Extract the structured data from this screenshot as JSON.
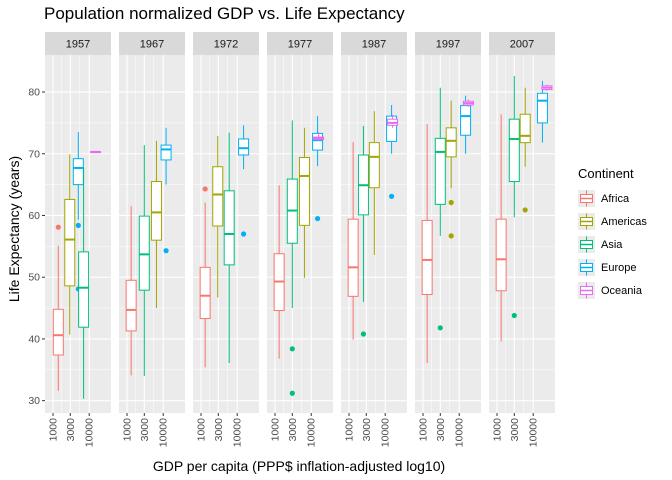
{
  "chart_data": {
    "type": "boxplot",
    "title": "Population normalized GDP vs. Life Expectancy",
    "xlabel": "GDP per capita (PPP$ inflation-adjusted log10)",
    "ylabel": "Life Expectancy (years)",
    "x_scale": "log10",
    "x_ticks": [
      "1000",
      "3000",
      "10000"
    ],
    "y_ticks": [
      "30",
      "40",
      "50",
      "60",
      "70",
      "80"
    ],
    "ylim": [
      28,
      86
    ],
    "grid": true,
    "legend_position": "right",
    "legend_title": "Continent",
    "facet_years": [
      "1957",
      "1967",
      "1972",
      "1977",
      "1987",
      "1997",
      "2007"
    ],
    "continents": [
      {
        "name": "Africa",
        "color": "#F8766D"
      },
      {
        "name": "Americas",
        "color": "#A3A500"
      },
      {
        "name": "Asia",
        "color": "#00BF7D"
      },
      {
        "name": "Europe",
        "color": "#00B0F6"
      },
      {
        "name": "Oceania",
        "color": "#E76BF3"
      }
    ],
    "boxes": [
      {
        "year": "1957",
        "continent": "Africa",
        "x": 1400,
        "wmin": 31.6,
        "q1": 37.4,
        "median": 40.6,
        "q3": 44.8,
        "wmax": 55.1,
        "outliers": [
          58.1
        ]
      },
      {
        "year": "1957",
        "continent": "Americas",
        "x": 2900,
        "wmin": 40.7,
        "q1": 48.6,
        "median": 56.1,
        "q3": 62.6,
        "wmax": 69.9,
        "outliers": []
      },
      {
        "year": "1957",
        "continent": "Europe",
        "x": 5000,
        "wmin": 59.3,
        "q1": 65.0,
        "median": 67.7,
        "q3": 69.2,
        "wmax": 73.5,
        "outliers": [
          58.4,
          48.1
        ]
      },
      {
        "year": "1957",
        "continent": "Asia",
        "x": 7000,
        "wmin": 30.3,
        "q1": 41.9,
        "median": 48.3,
        "q3": 54.1,
        "wmax": 67.8,
        "outliers": []
      },
      {
        "year": "1957",
        "continent": "Oceania",
        "x": 15000,
        "wmin": 70.26,
        "q1": 70.28,
        "median": 70.3,
        "q3": 70.32,
        "wmax": 70.33,
        "outliers": []
      },
      {
        "year": "1967",
        "continent": "Africa",
        "x": 1300,
        "wmin": 34.1,
        "q1": 41.3,
        "median": 44.7,
        "q3": 49.5,
        "wmax": 61.5,
        "outliers": []
      },
      {
        "year": "1967",
        "continent": "Asia",
        "x": 3000,
        "wmin": 34.0,
        "q1": 47.9,
        "median": 53.7,
        "q3": 59.9,
        "wmax": 71.4,
        "outliers": []
      },
      {
        "year": "1967",
        "continent": "Americas",
        "x": 6500,
        "wmin": 45.0,
        "q1": 56.0,
        "median": 60.5,
        "q3": 65.5,
        "wmax": 72.1,
        "outliers": []
      },
      {
        "year": "1967",
        "continent": "Europe",
        "x": 12000,
        "wmin": 65.0,
        "q1": 69.0,
        "median": 70.7,
        "q3": 71.4,
        "wmax": 74.2,
        "outliers": [
          54.3
        ]
      },
      {
        "year": "1972",
        "continent": "Africa",
        "x": 1300,
        "wmin": 35.4,
        "q1": 43.3,
        "median": 47.0,
        "q3": 51.6,
        "wmax": 62.1,
        "outliers": [
          64.3
        ]
      },
      {
        "year": "1972",
        "continent": "Americas",
        "x": 2900,
        "wmin": 46.7,
        "q1": 58.3,
        "median": 63.4,
        "q3": 67.9,
        "wmax": 72.9,
        "outliers": []
      },
      {
        "year": "1972",
        "continent": "Asia",
        "x": 6000,
        "wmin": 36.1,
        "q1": 52.0,
        "median": 57.0,
        "q3": 64.0,
        "wmax": 73.4,
        "outliers": []
      },
      {
        "year": "1972",
        "continent": "Europe",
        "x": 15000,
        "wmin": 67.5,
        "q1": 69.8,
        "median": 70.9,
        "q3": 72.4,
        "wmax": 74.6,
        "outliers": [
          57.0
        ]
      },
      {
        "year": "1977",
        "continent": "Africa",
        "x": 1300,
        "wmin": 36.8,
        "q1": 44.6,
        "median": 49.3,
        "q3": 53.8,
        "wmax": 64.9,
        "outliers": []
      },
      {
        "year": "1977",
        "continent": "Asia",
        "x": 3000,
        "wmin": 45.0,
        "q1": 55.5,
        "median": 60.8,
        "q3": 65.9,
        "wmax": 75.4,
        "outliers": [
          38.4,
          31.2
        ]
      },
      {
        "year": "1977",
        "continent": "Americas",
        "x": 6500,
        "wmin": 49.9,
        "q1": 58.4,
        "median": 66.4,
        "q3": 69.4,
        "wmax": 74.2,
        "outliers": []
      },
      {
        "year": "1977",
        "continent": "Europe",
        "x": 15000,
        "wmin": 68.0,
        "q1": 70.6,
        "median": 72.2,
        "q3": 73.3,
        "wmax": 76.1,
        "outliers": [
          59.5
        ]
      },
      {
        "year": "1977",
        "continent": "Oceania",
        "x": 16000,
        "wmin": 72.1,
        "q1": 72.3,
        "median": 72.5,
        "q3": 72.7,
        "wmax": 73.5,
        "outliers": []
      },
      {
        "year": "1987",
        "continent": "Africa",
        "x": 1300,
        "wmin": 39.9,
        "q1": 46.9,
        "median": 51.6,
        "q3": 59.4,
        "wmax": 71.9,
        "outliers": []
      },
      {
        "year": "1987",
        "continent": "Asia",
        "x": 2500,
        "wmin": 46.0,
        "q1": 60.1,
        "median": 64.9,
        "q3": 69.8,
        "wmax": 74.5,
        "outliers": [
          40.8
        ]
      },
      {
        "year": "1987",
        "continent": "Americas",
        "x": 5000,
        "wmin": 53.6,
        "q1": 64.5,
        "median": 69.5,
        "q3": 71.8,
        "wmax": 76.9,
        "outliers": []
      },
      {
        "year": "1987",
        "continent": "Europe",
        "x": 15000,
        "wmin": 70.0,
        "q1": 72.0,
        "median": 74.8,
        "q3": 76.1,
        "wmax": 77.9,
        "outliers": [
          63.1
        ]
      },
      {
        "year": "1987",
        "continent": "Oceania",
        "x": 16000,
        "wmin": 74.2,
        "q1": 74.6,
        "median": 75.0,
        "q3": 75.6,
        "wmax": 76.3,
        "outliers": []
      },
      {
        "year": "1997",
        "continent": "Africa",
        "x": 1300,
        "wmin": 36.1,
        "q1": 47.2,
        "median": 52.8,
        "q3": 59.2,
        "wmax": 74.8,
        "outliers": []
      },
      {
        "year": "1997",
        "continent": "Asia",
        "x": 3000,
        "wmin": 56.7,
        "q1": 61.8,
        "median": 70.3,
        "q3": 72.5,
        "wmax": 80.7,
        "outliers": [
          41.8
        ]
      },
      {
        "year": "1997",
        "continent": "Americas",
        "x": 6000,
        "wmin": 64.4,
        "q1": 69.5,
        "median": 72.1,
        "q3": 74.2,
        "wmax": 78.6,
        "outliers": [
          62.1,
          56.7
        ]
      },
      {
        "year": "1997",
        "continent": "Europe",
        "x": 15000,
        "wmin": 70.0,
        "q1": 73.0,
        "median": 76.1,
        "q3": 77.8,
        "wmax": 79.4,
        "outliers": []
      },
      {
        "year": "1997",
        "continent": "Oceania",
        "x": 18000,
        "wmin": 77.6,
        "q1": 77.9,
        "median": 78.2,
        "q3": 78.5,
        "wmax": 78.8,
        "outliers": []
      },
      {
        "year": "2007",
        "continent": "Africa",
        "x": 1300,
        "wmin": 39.6,
        "q1": 47.8,
        "median": 52.9,
        "q3": 59.4,
        "wmax": 76.4,
        "outliers": []
      },
      {
        "year": "2007",
        "continent": "Asia",
        "x": 3000,
        "wmin": 59.7,
        "q1": 65.5,
        "median": 72.4,
        "q3": 75.6,
        "wmax": 82.6,
        "outliers": [
          43.8
        ]
      },
      {
        "year": "2007",
        "continent": "Americas",
        "x": 6000,
        "wmin": 67.9,
        "q1": 71.8,
        "median": 72.9,
        "q3": 76.4,
        "wmax": 80.7,
        "outliers": [
          60.9
        ]
      },
      {
        "year": "2007",
        "continent": "Europe",
        "x": 18000,
        "wmin": 71.8,
        "q1": 75.0,
        "median": 78.6,
        "q3": 79.8,
        "wmax": 81.8,
        "outliers": []
      },
      {
        "year": "2007",
        "continent": "Oceania",
        "x": 24000,
        "wmin": 80.2,
        "q1": 80.4,
        "median": 80.7,
        "q3": 81.0,
        "wmax": 81.2,
        "outliers": []
      }
    ]
  }
}
